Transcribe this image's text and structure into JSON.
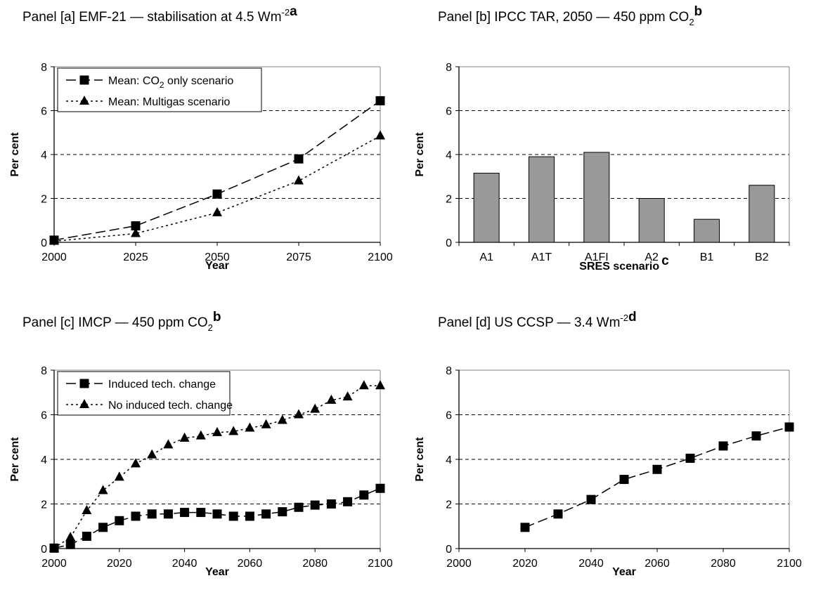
{
  "chart_data": [
    {
      "panel": "a",
      "type": "line",
      "title": "Panel [a] EMF-21 — stabilisation at 4.5 Wm",
      "title_sup": "-2",
      "title_note": "a",
      "xlabel": "Year",
      "ylabel": "Per cent",
      "xlim": [
        2000,
        2100
      ],
      "xticks": [
        2000,
        2025,
        2050,
        2075,
        2100
      ],
      "ylim": [
        0,
        8
      ],
      "yticks": [
        0,
        2,
        4,
        6,
        8
      ],
      "grid": "horizontal dashed",
      "legend_position": "top-left",
      "legend": [
        {
          "before": "Mean: CO",
          "sub": "2",
          "after": " only scenario"
        },
        {
          "before": "Mean: Multigas scenario",
          "sub": "",
          "after": ""
        }
      ],
      "series": [
        {
          "name": "Mean: CO2 only scenario",
          "marker": "square",
          "line": "long-dash",
          "x": [
            2000,
            2025,
            2050,
            2075,
            2100
          ],
          "y": [
            0.1,
            0.75,
            2.2,
            3.8,
            6.45
          ]
        },
        {
          "name": "Mean: Multigas scenario",
          "marker": "triangle",
          "line": "dotted",
          "x": [
            2000,
            2025,
            2050,
            2075,
            2100
          ],
          "y": [
            0.05,
            0.4,
            1.35,
            2.8,
            4.85
          ]
        }
      ]
    },
    {
      "panel": "b",
      "type": "bar",
      "title": "Panel [b] IPCC TAR, 2050 — 450 ppm CO",
      "title_sub": "2",
      "title_note": "b",
      "xlabel": "SRES scenario",
      "xlabel_note": "c",
      "ylabel": "Per cent",
      "ylim": [
        0,
        8
      ],
      "yticks": [
        0,
        2,
        4,
        6,
        8
      ],
      "grid": "horizontal dashed",
      "categories": [
        "A1",
        "A1T",
        "A1FI",
        "A2",
        "B1",
        "B2"
      ],
      "values": [
        3.15,
        3.9,
        4.1,
        2.0,
        1.05,
        2.6
      ],
      "bar_color": "#999999"
    },
    {
      "panel": "c",
      "type": "line",
      "title": "Panel [c] IMCP — 450 ppm CO",
      "title_sub": "2",
      "title_note": "b",
      "xlabel": "Year",
      "ylabel": "Per cent",
      "xlim": [
        2000,
        2100
      ],
      "xticks": [
        2000,
        2020,
        2040,
        2060,
        2080,
        2100
      ],
      "ylim": [
        0,
        8
      ],
      "yticks": [
        0,
        2,
        4,
        6,
        8
      ],
      "grid": "horizontal dashed",
      "legend_position": "top-left",
      "legend": [
        {
          "before": "Induced tech. change",
          "sub": "",
          "after": ""
        },
        {
          "before": "No induced tech. change",
          "sub": "",
          "after": ""
        }
      ],
      "series": [
        {
          "name": "Induced tech. change",
          "marker": "square",
          "line": "long-dash",
          "x": [
            2000,
            2005,
            2010,
            2015,
            2020,
            2025,
            2030,
            2035,
            2040,
            2045,
            2050,
            2055,
            2060,
            2065,
            2070,
            2075,
            2080,
            2085,
            2090,
            2095,
            2100
          ],
          "y": [
            0.02,
            0.18,
            0.55,
            0.95,
            1.25,
            1.45,
            1.55,
            1.55,
            1.62,
            1.62,
            1.55,
            1.45,
            1.45,
            1.55,
            1.65,
            1.85,
            1.95,
            2.0,
            2.1,
            2.4,
            2.7
          ]
        },
        {
          "name": "No induced tech. change",
          "marker": "triangle",
          "line": "dotted",
          "x": [
            2000,
            2005,
            2010,
            2015,
            2020,
            2025,
            2030,
            2035,
            2040,
            2045,
            2050,
            2055,
            2060,
            2065,
            2070,
            2075,
            2080,
            2085,
            2090,
            2095,
            2100
          ],
          "y": [
            0.02,
            0.5,
            1.7,
            2.6,
            3.2,
            3.8,
            4.2,
            4.65,
            4.95,
            5.05,
            5.2,
            5.25,
            5.4,
            5.55,
            5.75,
            6.0,
            6.25,
            6.65,
            6.8,
            7.3,
            7.3
          ]
        }
      ]
    },
    {
      "panel": "d",
      "type": "line",
      "title": "Panel [d] US CCSP — 3.4 Wm",
      "title_sup": "-2",
      "title_note": "d",
      "xlabel": "Year",
      "ylabel": "Per cent",
      "xlim": [
        2000,
        2100
      ],
      "xticks": [
        2000,
        2020,
        2040,
        2060,
        2080,
        2100
      ],
      "ylim": [
        0,
        8
      ],
      "yticks": [
        0,
        2,
        4,
        6,
        8
      ],
      "grid": "horizontal dashed",
      "series": [
        {
          "marker": "square",
          "line": "long-dash",
          "x": [
            2020,
            2030,
            2040,
            2050,
            2060,
            2070,
            2080,
            2090,
            2100
          ],
          "y": [
            0.95,
            1.55,
            2.2,
            3.1,
            3.55,
            4.05,
            4.6,
            5.05,
            5.45
          ]
        }
      ]
    }
  ]
}
